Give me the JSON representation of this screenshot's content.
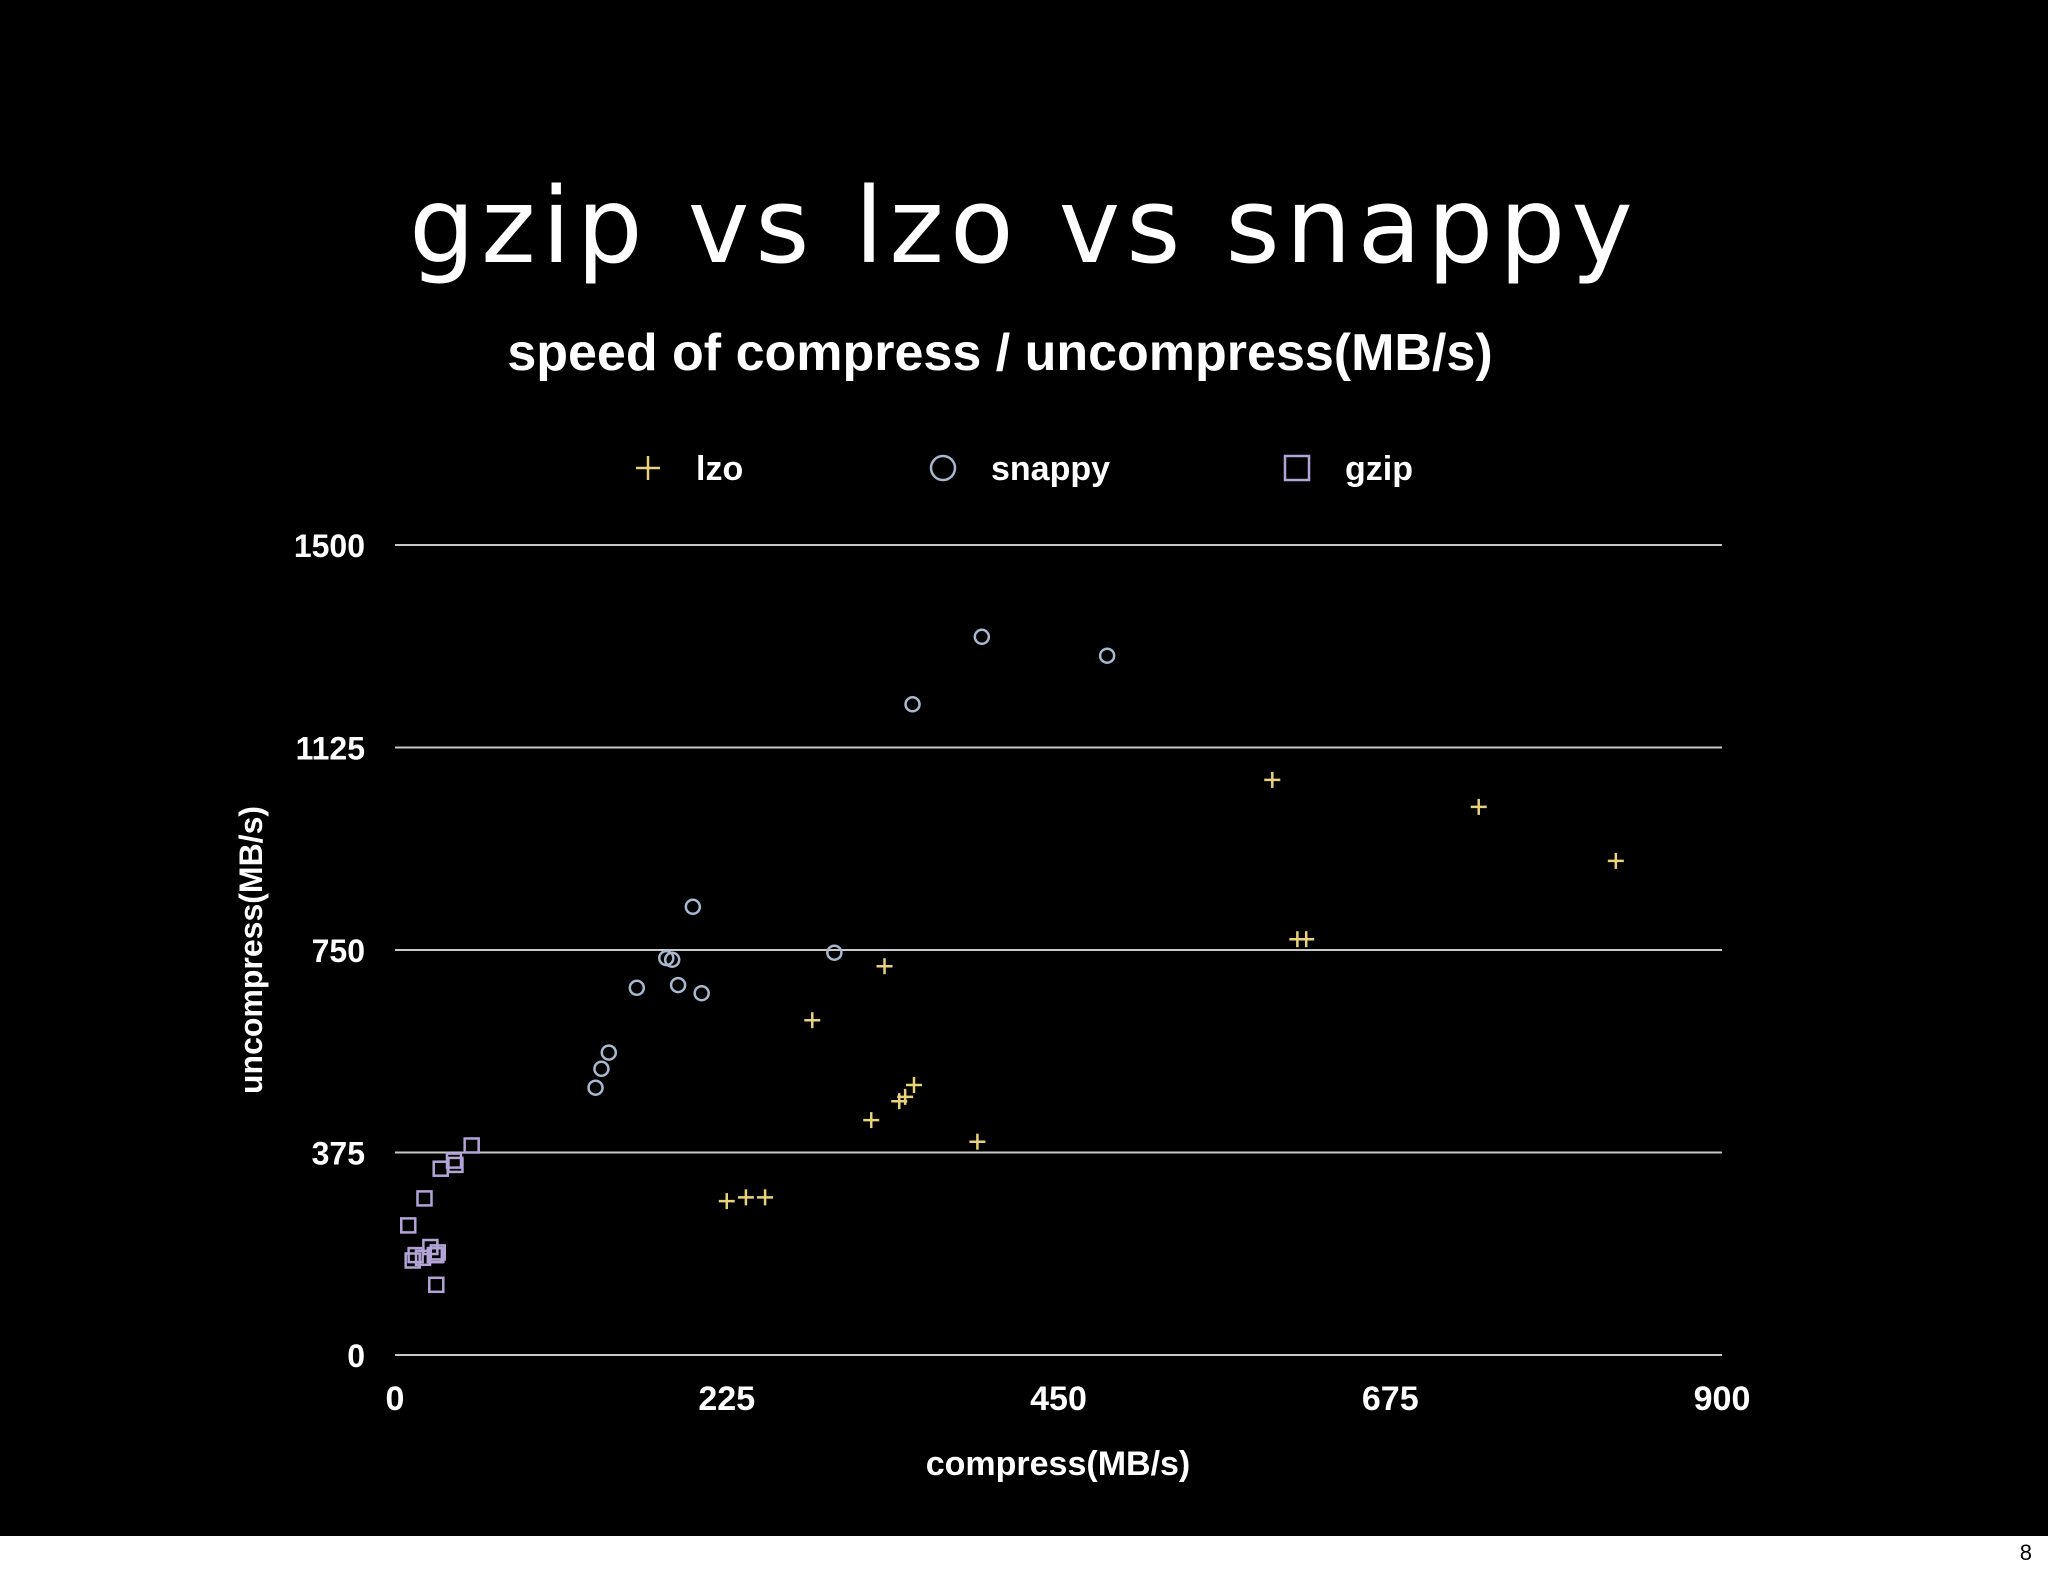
{
  "slide": {
    "title": "gzip vs lzo vs snappy",
    "page_number": "8"
  },
  "colors": {
    "background": "#000000",
    "text": "#ffffff",
    "gridline": "#c8c8c8",
    "lzo": "#e8d27a",
    "snappy": "#a9b8cf",
    "gzip": "#b3a4d6"
  },
  "chart_data": {
    "type": "scatter",
    "title": "speed of compress / uncompress(MB/s)",
    "xlabel": "compress(MB/s)",
    "ylabel": "uncompress(MB/s)",
    "xlim": [
      0,
      900
    ],
    "ylim": [
      0,
      1500
    ],
    "xticks": [
      "0",
      "225",
      "450",
      "675",
      "900"
    ],
    "yticks": [
      "0",
      "375",
      "750",
      "1125",
      "1500"
    ],
    "grid": "horizontal",
    "legend_position": "top",
    "series": [
      {
        "name": "lzo",
        "marker": "plus",
        "points": [
          [
            225,
            285
          ],
          [
            238,
            292
          ],
          [
            251,
            292
          ],
          [
            283,
            620
          ],
          [
            323,
            435
          ],
          [
            332,
            720
          ],
          [
            342,
            470
          ],
          [
            346,
            478
          ],
          [
            352,
            500
          ],
          [
            395,
            395
          ],
          [
            595,
            1065
          ],
          [
            612,
            770
          ],
          [
            618,
            770
          ],
          [
            735,
            1015
          ],
          [
            828,
            915
          ]
        ]
      },
      {
        "name": "snappy",
        "marker": "circle",
        "points": [
          [
            136,
            495
          ],
          [
            140,
            530
          ],
          [
            145,
            560
          ],
          [
            164,
            680
          ],
          [
            184,
            735
          ],
          [
            188,
            732
          ],
          [
            192,
            685
          ],
          [
            202,
            830
          ],
          [
            208,
            670
          ],
          [
            298,
            745
          ],
          [
            351,
            1205
          ],
          [
            398,
            1330
          ],
          [
            483,
            1295
          ]
        ]
      },
      {
        "name": "gzip",
        "marker": "square",
        "points": [
          [
            9,
            240
          ],
          [
            12,
            175
          ],
          [
            14,
            185
          ],
          [
            19,
            180
          ],
          [
            20,
            290
          ],
          [
            24,
            200
          ],
          [
            27,
            185
          ],
          [
            28,
            185
          ],
          [
            28,
            130
          ],
          [
            29,
            190
          ],
          [
            31,
            345
          ],
          [
            40,
            360
          ],
          [
            41,
            352
          ],
          [
            52,
            388
          ]
        ]
      }
    ]
  }
}
